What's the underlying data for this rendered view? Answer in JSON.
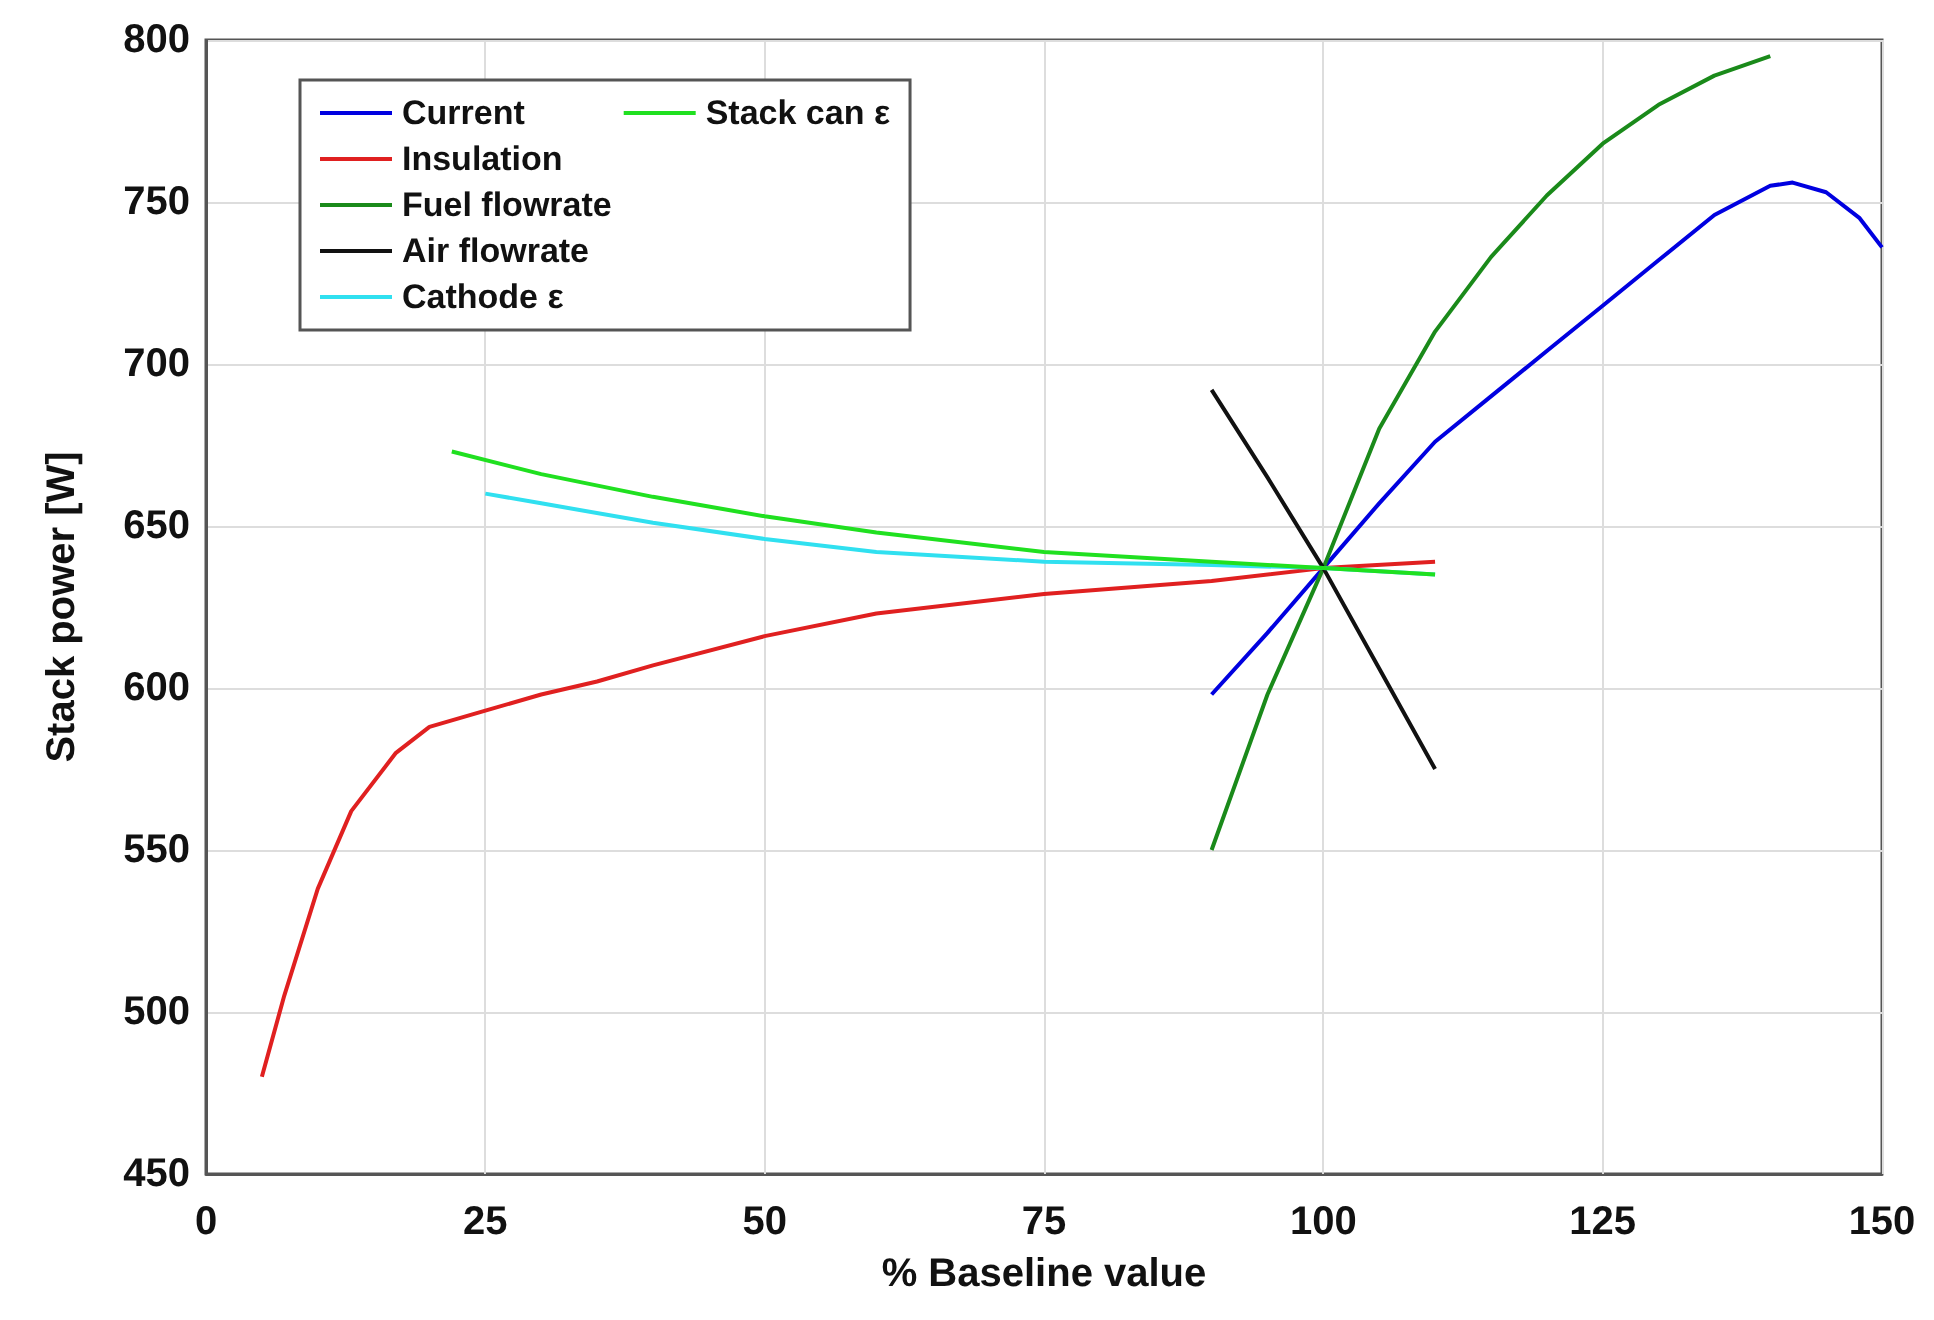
{
  "chart_data": {
    "type": "line",
    "xlabel": "% Baseline value",
    "ylabel": "Stack power [W]",
    "xlim": [
      0,
      150
    ],
    "xticks": [
      0,
      25,
      50,
      75,
      100,
      125,
      150
    ],
    "ylim": [
      450,
      800
    ],
    "yticks": [
      450,
      500,
      550,
      600,
      650,
      700,
      750,
      800
    ],
    "grid": true,
    "legend": "top left",
    "marker": "none",
    "line_style": "solid",
    "series": [
      {
        "name": "Current",
        "color": "#0000e0",
        "x": [
          90,
          95,
          100,
          105,
          110,
          115,
          120,
          125,
          130,
          135,
          140,
          142,
          145,
          148,
          150
        ],
        "values": [
          598,
          617,
          637,
          657,
          676,
          690,
          704,
          718,
          732,
          746,
          755,
          756,
          753,
          745,
          736
        ]
      },
      {
        "name": "Insulation",
        "color": "#e02020",
        "x": [
          5,
          7,
          10,
          13,
          17,
          20,
          25,
          30,
          35,
          40,
          50,
          60,
          75,
          90,
          100,
          110
        ],
        "values": [
          480,
          505,
          538,
          562,
          580,
          588,
          593,
          598,
          602,
          607,
          616,
          623,
          629,
          633,
          637,
          639
        ]
      },
      {
        "name": "Fuel flowrate",
        "color": "#1a8a1a",
        "x": [
          90,
          95,
          100,
          105,
          110,
          115,
          120,
          125,
          130,
          135,
          140
        ],
        "values": [
          550,
          598,
          637,
          680,
          710,
          733,
          752,
          768,
          780,
          789,
          795
        ]
      },
      {
        "name": "Air flowrate",
        "color": "#111111",
        "x": [
          90,
          95,
          100,
          105,
          110
        ],
        "values": [
          692,
          665,
          637,
          606,
          575
        ]
      },
      {
        "name": "Cathode ε",
        "color": "#30e0f0",
        "x": [
          25,
          30,
          40,
          50,
          60,
          75,
          90,
          100,
          110
        ],
        "values": [
          660,
          657,
          651,
          646,
          642,
          639,
          638,
          637,
          635
        ]
      },
      {
        "name": "Stack can ε",
        "color": "#20e020",
        "x": [
          22,
          30,
          40,
          50,
          60,
          75,
          90,
          100,
          110
        ],
        "values": [
          673,
          666,
          659,
          653,
          648,
          642,
          639,
          637,
          635
        ]
      }
    ]
  }
}
